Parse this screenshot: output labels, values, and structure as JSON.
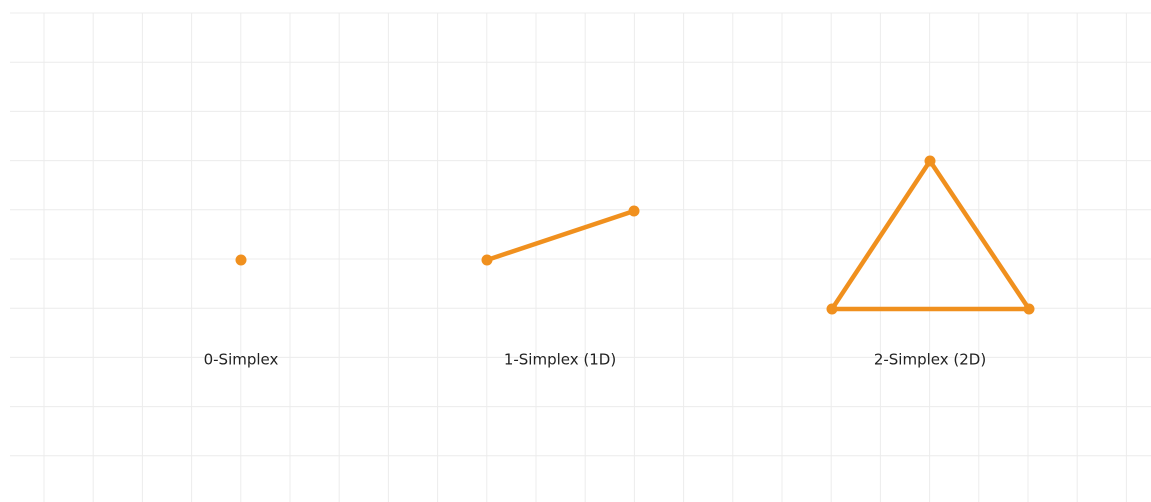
{
  "labels": [
    "0-Simplex",
    "1-Simplex (1D)",
    "2-Simplex (2D)"
  ]
}
